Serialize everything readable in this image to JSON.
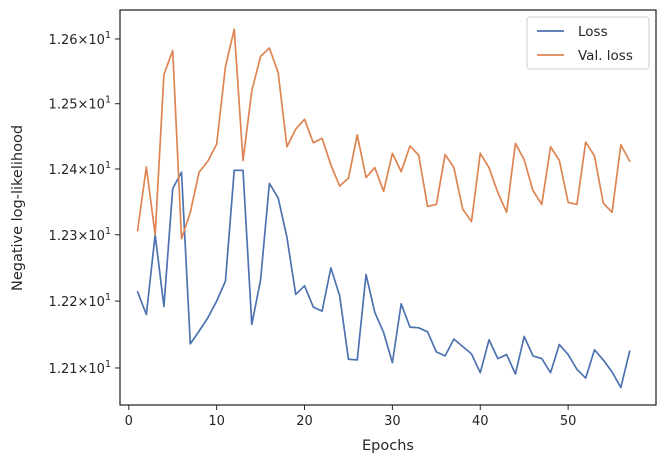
{
  "chart_data": {
    "type": "line",
    "title": "",
    "xlabel": "Epochs",
    "ylabel": "Negative log-likelihood",
    "xlim": [
      -1,
      60
    ],
    "ylim": [
      12.045,
      12.645
    ],
    "y_scale": "log",
    "x_ticks": [
      0,
      10,
      20,
      30,
      40,
      50
    ],
    "y_ticks": [
      {
        "value": 12.1,
        "mantissa": "1.21",
        "base": "10",
        "exponent": "1"
      },
      {
        "value": 12.2,
        "mantissa": "1.22",
        "base": "10",
        "exponent": "1"
      },
      {
        "value": 12.3,
        "mantissa": "1.23",
        "base": "10",
        "exponent": "1"
      },
      {
        "value": 12.4,
        "mantissa": "1.24",
        "base": "10",
        "exponent": "1"
      },
      {
        "value": 12.5,
        "mantissa": "1.25",
        "base": "10",
        "exponent": "1"
      },
      {
        "value": 12.6,
        "mantissa": "1.26",
        "base": "10",
        "exponent": "1"
      }
    ],
    "times_sign": "×",
    "grid": false,
    "legend_position": "top-right",
    "x": [
      1,
      2,
      3,
      4,
      5,
      6,
      7,
      8,
      9,
      10,
      11,
      12,
      13,
      14,
      15,
      16,
      17,
      18,
      19,
      20,
      21,
      22,
      23,
      24,
      25,
      26,
      27,
      28,
      29,
      30,
      31,
      32,
      33,
      34,
      35,
      36,
      37,
      38,
      39,
      40,
      41,
      42,
      43,
      44,
      45,
      46,
      47,
      48,
      49,
      50,
      51,
      52,
      53,
      54,
      55,
      56,
      57
    ],
    "series": [
      {
        "name": "Loss",
        "color": "#4c72b0",
        "values": [
          12.214,
          12.18,
          12.3,
          12.192,
          12.37,
          12.395,
          12.136,
          12.155,
          12.175,
          12.2,
          12.23,
          12.398,
          12.398,
          12.165,
          12.232,
          12.378,
          12.356,
          12.296,
          12.21,
          12.223,
          12.191,
          12.185,
          12.25,
          12.208,
          12.113,
          12.112,
          12.24,
          12.183,
          12.153,
          12.108,
          12.196,
          12.161,
          12.16,
          12.154,
          12.124,
          12.118,
          12.143,
          12.132,
          12.121,
          12.093,
          12.142,
          12.114,
          12.12,
          12.091,
          12.147,
          12.118,
          12.114,
          12.093,
          12.135,
          12.12,
          12.098,
          12.085,
          12.127,
          12.112,
          12.094,
          12.071,
          12.125
        ]
      },
      {
        "name": "Val. loss",
        "color": "#dd8452",
        "values": [
          12.306,
          12.403,
          12.3,
          12.545,
          12.582,
          12.294,
          12.334,
          12.395,
          12.412,
          12.438,
          12.557,
          12.615,
          12.413,
          12.52,
          12.573,
          12.586,
          12.548,
          12.434,
          12.461,
          12.476,
          12.44,
          12.447,
          12.406,
          12.374,
          12.386,
          12.452,
          12.387,
          12.402,
          12.366,
          12.424,
          12.396,
          12.435,
          12.421,
          12.343,
          12.346,
          12.422,
          12.402,
          12.339,
          12.32,
          12.424,
          12.402,
          12.364,
          12.334,
          12.439,
          12.414,
          12.367,
          12.346,
          12.434,
          12.413,
          12.349,
          12.346,
          12.441,
          12.42,
          12.348,
          12.334,
          12.437,
          12.412
        ]
      }
    ]
  }
}
